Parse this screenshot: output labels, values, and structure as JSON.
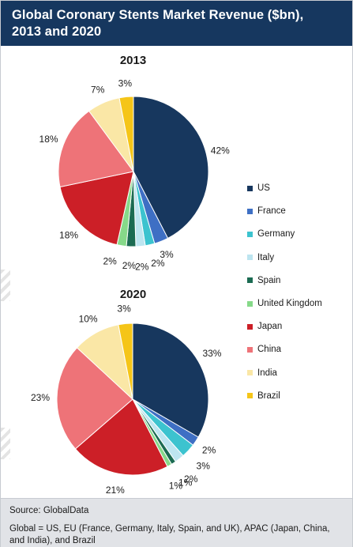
{
  "header": {
    "title_line1": "Global Coronary Stents Market Revenue ($bn),",
    "title_line2": "2013 and 2020"
  },
  "chart_data": [
    {
      "type": "pie",
      "title": "2013",
      "categories": [
        "US",
        "France",
        "Germany",
        "Italy",
        "Spain",
        "United Kingdom",
        "Japan",
        "China",
        "India",
        "Brazil"
      ],
      "values": [
        42,
        3,
        2,
        2,
        2,
        2,
        18,
        18,
        7,
        3
      ],
      "labels": [
        "42%",
        "3%",
        "2%",
        "2%",
        "2%",
        "2%",
        "18%",
        "18%",
        "7%",
        "3%"
      ],
      "unit": "%"
    },
    {
      "type": "pie",
      "title": "2020",
      "categories": [
        "US",
        "France",
        "Germany",
        "Italy",
        "Spain",
        "United Kingdom",
        "Japan",
        "China",
        "India",
        "Brazil"
      ],
      "values": [
        33,
        2,
        3,
        2,
        1,
        1,
        21,
        23,
        10,
        3
      ],
      "labels": [
        "33%",
        "2%",
        "3%",
        "2%",
        "1%",
        "1%",
        "21%",
        "23%",
        "10%",
        "3%"
      ],
      "unit": "%"
    }
  ],
  "legend": {
    "placement": "right",
    "items": [
      {
        "label": "US",
        "color": "#17375e"
      },
      {
        "label": "France",
        "color": "#3e6fc4"
      },
      {
        "label": "Germany",
        "color": "#3cc3cf"
      },
      {
        "label": "Italy",
        "color": "#bde5f0"
      },
      {
        "label": "Spain",
        "color": "#1b6b52"
      },
      {
        "label": "United Kingdom",
        "color": "#86d989"
      },
      {
        "label": "Japan",
        "color": "#cc1f27"
      },
      {
        "label": "China",
        "color": "#ee7378"
      },
      {
        "label": "India",
        "color": "#fae7a6"
      },
      {
        "label": "Brazil",
        "color": "#f5c518"
      }
    ]
  },
  "footer": {
    "source": "Source: GlobalData",
    "note": "Global = US, EU (France, Germany, Italy, Spain, and UK), APAC (Japan, China, and India), and Brazil"
  },
  "colors": {
    "header_bg": "#16375f",
    "footer_bg": "#e1e3e7"
  }
}
